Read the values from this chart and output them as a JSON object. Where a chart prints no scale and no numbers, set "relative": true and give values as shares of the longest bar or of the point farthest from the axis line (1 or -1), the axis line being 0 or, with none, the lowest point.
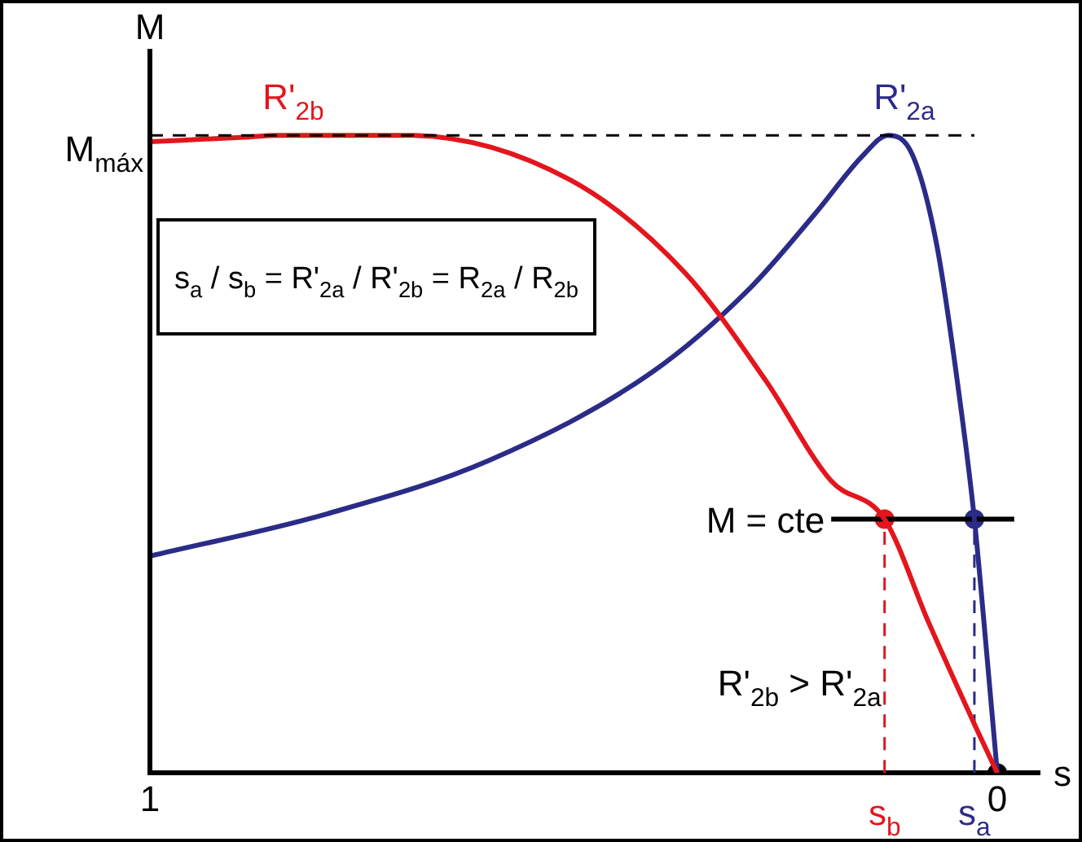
{
  "chart_data": {
    "type": "line",
    "relative": true,
    "xlabel": "s",
    "ylabel": "M",
    "xlim": [
      1,
      -0.05
    ],
    "xticks": [
      1,
      0
    ],
    "series": [
      {
        "name": "R'$_{2b}$",
        "color": "#e3161d",
        "x": [
          1,
          0.888,
          0.85,
          0.696,
          0.504,
          0.369,
          0.273,
          0.196,
          0.133,
          0.081,
          0.023,
          0
        ],
        "values": [
          0.99,
          0.997,
          1.0,
          1.0,
          0.93,
          0.785,
          0.615,
          0.458,
          0.398,
          0.236,
          0.065,
          0
        ]
      },
      {
        "name": "R'$_{2a}$",
        "color": "#2b2b88",
        "x": [
          1,
          0.792,
          0.6,
          0.408,
          0.292,
          0.215,
          0.158,
          0.129,
          0.1,
          0.071,
          0.042,
          0.027,
          0.013,
          0
        ],
        "values": [
          0.34,
          0.406,
          0.49,
          0.628,
          0.76,
          0.877,
          0.969,
          1.0,
          0.969,
          0.825,
          0.563,
          0.398,
          0.196,
          0
        ]
      },
      {
        "name": "M = cte",
        "color": "#000000",
        "x": [
          0.196,
          -0.02
        ],
        "values": [
          0.398,
          0.398
        ]
      },
      {
        "color": "#e3161d",
        "line_style": "dashed",
        "x": [
          0.133,
          0.133
        ],
        "values": [
          0,
          0.398
        ]
      },
      {
        "color": "#2b2b88",
        "line_style": "dashed",
        "x": [
          0.027,
          0.027
        ],
        "values": [
          0,
          0.398
        ]
      },
      {
        "type": "scatter",
        "marker": "circle",
        "x": [
          0.133,
          0.027,
          0
        ],
        "values": [
          0.398,
          0.398,
          0
        ],
        "colors": [
          "#e3161d",
          "#2b2b88",
          "#000000"
        ]
      }
    ],
    "ref_lines": [
      {
        "axis": "x",
        "value": 1,
        "color": "#000000",
        "line_style": "solid"
      },
      {
        "axis": "y",
        "value": 1,
        "label": "M$_{máx}$",
        "color": "#000000",
        "line_style": "dashed"
      }
    ],
    "annotations": [
      "s$_{a}$ / s$_{b}$ = R'$_{2a}$ / R'$_{2b}$ = R$_{2a}$ / R$_{2b}$",
      "R'$_{2b}$ > R'$_{2a}$",
      {
        "text": "s$_{b}$",
        "x": 0.133,
        "y": 0
      },
      {
        "text": "s$_{a}$",
        "x": 0.027,
        "y": 0
      }
    ],
    "grid": false,
    "legend": false
  }
}
